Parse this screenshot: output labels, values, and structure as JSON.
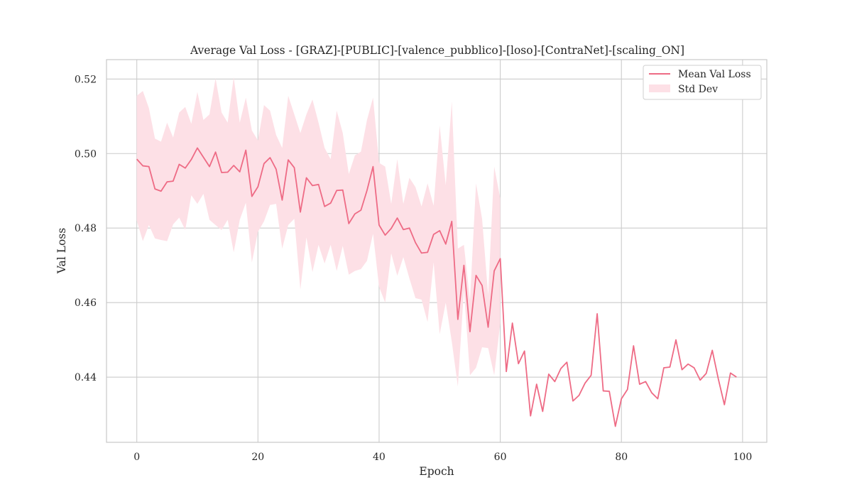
{
  "chart_data": {
    "type": "line",
    "title": "Average Val Loss - [GRAZ]-[PUBLIC]-[valence_pubblico]-[loso]-[ContraNet]-[scaling_ON]",
    "xlabel": "Epoch",
    "ylabel": "Val Loss",
    "xlim": [
      -5,
      104
    ],
    "ylim": [
      0.4225,
      0.5252
    ],
    "xticks": [
      0,
      20,
      40,
      60,
      80,
      100
    ],
    "yticks": [
      0.44,
      0.46,
      0.48,
      0.5,
      0.52
    ],
    "grid": true,
    "legend_position": "top-right",
    "colors": {
      "line": "#ee6b85",
      "band": "#fde0e6",
      "grid": "#cccccc",
      "frame": "#c8c8c8"
    },
    "series": [
      {
        "name": "Mean Val Loss",
        "role": "mean",
        "x": [
          0,
          1,
          2,
          3,
          4,
          5,
          6,
          7,
          8,
          9,
          10,
          11,
          12,
          13,
          14,
          15,
          16,
          17,
          18,
          19,
          20,
          21,
          22,
          23,
          24,
          25,
          26,
          27,
          28,
          29,
          30,
          31,
          32,
          33,
          34,
          35,
          36,
          37,
          38,
          39,
          40,
          41,
          42,
          43,
          44,
          45,
          46,
          47,
          48,
          49,
          50,
          51,
          52,
          53,
          54,
          55,
          56,
          57,
          58,
          59,
          60,
          61,
          62,
          63,
          64,
          65,
          66,
          67,
          68,
          69,
          70,
          71,
          72,
          73,
          74,
          75,
          76,
          77,
          78,
          79,
          80,
          81,
          82,
          83,
          84,
          85,
          86,
          87,
          88,
          89,
          90,
          91,
          92,
          93,
          94,
          95,
          96,
          97,
          98,
          99
        ],
        "values": [
          0.4985,
          0.4967,
          0.4965,
          0.4905,
          0.4899,
          0.4924,
          0.4926,
          0.4971,
          0.4961,
          0.4984,
          0.5015,
          0.499,
          0.4965,
          0.5004,
          0.4949,
          0.495,
          0.4968,
          0.4951,
          0.5009,
          0.4885,
          0.4911,
          0.4973,
          0.4989,
          0.4958,
          0.4875,
          0.4983,
          0.4962,
          0.4843,
          0.4935,
          0.4914,
          0.4917,
          0.4858,
          0.4867,
          0.4901,
          0.4902,
          0.4812,
          0.4838,
          0.4848,
          0.4901,
          0.4965,
          0.4808,
          0.4781,
          0.4799,
          0.4827,
          0.4796,
          0.48,
          0.4761,
          0.4733,
          0.4735,
          0.4783,
          0.4793,
          0.4757,
          0.4818,
          0.4555,
          0.47,
          0.4522,
          0.4673,
          0.4646,
          0.4534,
          0.4685,
          0.4718,
          0.4415,
          0.4545,
          0.4436,
          0.447,
          0.4296,
          0.4381,
          0.4308,
          0.4408,
          0.4388,
          0.4423,
          0.444,
          0.4336,
          0.4351,
          0.4384,
          0.4405,
          0.457,
          0.4363,
          0.4362,
          0.4268,
          0.4342,
          0.4367,
          0.4484,
          0.4381,
          0.4388,
          0.4358,
          0.4342,
          0.4425,
          0.4427,
          0.45,
          0.442,
          0.4435,
          0.4425,
          0.4392,
          0.441,
          0.4472,
          0.4395,
          0.4326,
          0.4411,
          0.44
        ]
      },
      {
        "name": "Std Dev",
        "role": "band",
        "x": [
          0,
          1,
          2,
          3,
          4,
          5,
          6,
          7,
          8,
          9,
          10,
          11,
          12,
          13,
          14,
          15,
          16,
          17,
          18,
          19,
          20,
          21,
          22,
          23,
          24,
          25,
          26,
          27,
          28,
          29,
          30,
          31,
          32,
          33,
          34,
          35,
          36,
          37,
          38,
          39,
          40,
          41,
          42,
          43,
          44,
          45,
          46,
          47,
          48,
          49,
          50,
          51,
          52,
          53,
          54,
          55,
          56,
          57,
          58,
          59,
          60
        ],
        "upper": [
          0.5155,
          0.5168,
          0.5122,
          0.504,
          0.5032,
          0.5083,
          0.5043,
          0.511,
          0.5125,
          0.508,
          0.5165,
          0.509,
          0.5105,
          0.5202,
          0.511,
          0.5083,
          0.5205,
          0.5083,
          0.515,
          0.5062,
          0.5035,
          0.513,
          0.5115,
          0.505,
          0.5015,
          0.5155,
          0.5105,
          0.5055,
          0.5105,
          0.5145,
          0.5083,
          0.5015,
          0.4985,
          0.5115,
          0.5055,
          0.4945,
          0.4995,
          0.5005,
          0.509,
          0.515,
          0.4975,
          0.4965,
          0.4865,
          0.4985,
          0.4865,
          0.4935,
          0.491,
          0.4858,
          0.492,
          0.486,
          0.5075,
          0.4915,
          0.514,
          0.4745,
          0.4755,
          0.4605,
          0.492,
          0.4825,
          0.462,
          0.4965,
          0.488
        ],
        "lower": [
          0.482,
          0.4765,
          0.4808,
          0.4772,
          0.4768,
          0.4765,
          0.481,
          0.4828,
          0.4795,
          0.4888,
          0.4865,
          0.4892,
          0.4822,
          0.4808,
          0.4795,
          0.4822,
          0.4735,
          0.4822,
          0.4868,
          0.4708,
          0.479,
          0.4818,
          0.4862,
          0.4865,
          0.4745,
          0.4808,
          0.4825,
          0.4635,
          0.4775,
          0.4682,
          0.4755,
          0.4705,
          0.4755,
          0.4685,
          0.4752,
          0.4675,
          0.4685,
          0.469,
          0.4712,
          0.4785,
          0.4642,
          0.46,
          0.4732,
          0.4672,
          0.4722,
          0.4665,
          0.4612,
          0.4608,
          0.4548,
          0.4708,
          0.4515,
          0.46,
          0.4495,
          0.4375,
          0.4635,
          0.4405,
          0.4425,
          0.448,
          0.4478,
          0.4405,
          0.4545
        ]
      }
    ]
  }
}
